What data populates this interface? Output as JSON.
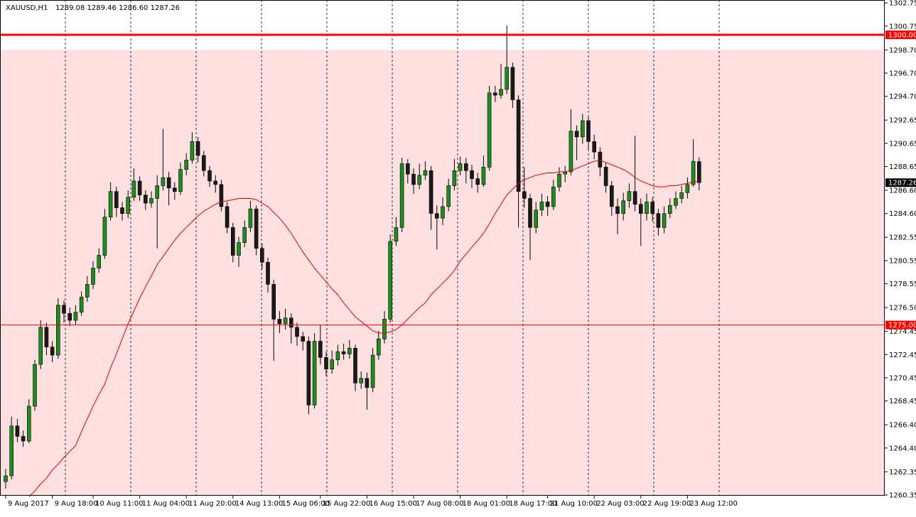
{
  "chart_data": {
    "type": "candlestick",
    "title": "XAUUSD,H1",
    "ohlc_text": "1289.08 1289.46 1286.60 1287.26",
    "ylim": [
      1260.35,
      1303.0
    ],
    "yticks": [
      1302.75,
      1300.75,
      {
        "value": 1298.7,
        "label": "1298.70"
      },
      {
        "value": 1296.7,
        "label": "1296.70"
      },
      {
        "value": 1294.7,
        "label": "1294.70"
      },
      1292.65,
      1290.65,
      1288.65,
      {
        "value": 1286.6,
        "label": "1286.60"
      },
      {
        "value": 1284.6,
        "label": "1284.60"
      },
      1282.55,
      1280.55,
      1278.55,
      {
        "value": 1276.5,
        "label": "1276.50"
      },
      1274.45,
      1272.45,
      1270.45,
      1268.45,
      {
        "value": 1266.4,
        "label": "1266.40"
      },
      {
        "value": 1264.4,
        "label": "1264.40"
      },
      1262.35,
      1260.35
    ],
    "shaded_below": 1298.7,
    "shade_color": "#ffe0e0",
    "levels": [
      {
        "value": 1300,
        "label": "1300.00",
        "width": 3
      },
      {
        "value": 1275,
        "label": "1275.00",
        "width": 1
      }
    ],
    "level_color": "#ff0000",
    "last_price": 1287.26,
    "up_color": "#1e8c1e",
    "down_color": "#1a1a1a",
    "ma_color": "#e00000",
    "categories": [
      "9 Aug 2017",
      null,
      null,
      null,
      null,
      null,
      null,
      null,
      "9 Aug 18:00",
      null,
      null,
      null,
      null,
      null,
      null,
      "10 Aug 11:00",
      null,
      null,
      null,
      null,
      null,
      null,
      null,
      "11 Aug 04:00",
      null,
      null,
      null,
      null,
      null,
      null,
      null,
      "11 Aug 20:00",
      null,
      null,
      null,
      null,
      null,
      null,
      null,
      "14 Aug 13:00",
      null,
      null,
      null,
      null,
      null,
      null,
      null,
      "15 Aug 06:00",
      null,
      null,
      null,
      null,
      null,
      null,
      "15 Aug 22:00",
      null,
      null,
      null,
      null,
      null,
      null,
      null,
      "16 Aug 15:00",
      null,
      null,
      null,
      null,
      null,
      null,
      null,
      "17 Aug 08:00",
      null,
      null,
      null,
      null,
      null,
      null,
      null,
      "18 Aug 01:00",
      null,
      null,
      null,
      null,
      null,
      null,
      null,
      "18 Aug 17:00",
      null,
      null,
      null,
      null,
      null,
      null,
      "21 Aug 10:00",
      null,
      null,
      null,
      null,
      null,
      null,
      null,
      "22 Aug 03:00",
      null,
      null,
      null,
      null,
      null,
      null,
      null,
      "22 Aug 19:00",
      null,
      null,
      null,
      null,
      null,
      null,
      null,
      "23 Aug 12:00",
      null,
      null
    ],
    "ohlc": [
      [
        1261.5,
        1262.6,
        1260.9,
        1262.0
      ],
      [
        1262.0,
        1267.1,
        1261.7,
        1266.3
      ],
      [
        1266.3,
        1266.9,
        1264.9,
        1265.4
      ],
      [
        1265.4,
        1265.9,
        1264.5,
        1265.0
      ],
      [
        1265.0,
        1268.6,
        1264.8,
        1268.0
      ],
      [
        1268.0,
        1272.0,
        1267.6,
        1271.6
      ],
      [
        1271.6,
        1275.4,
        1271.2,
        1274.8
      ],
      [
        1274.8,
        1275.2,
        1272.4,
        1273.1
      ],
      [
        1273.1,
        1273.6,
        1271.8,
        1272.4
      ],
      [
        1272.4,
        1277.3,
        1272.1,
        1276.7
      ],
      [
        1276.7,
        1277.1,
        1275.2,
        1276.0
      ],
      [
        1276.0,
        1276.5,
        1274.9,
        1275.4
      ],
      [
        1275.4,
        1276.7,
        1275.0,
        1276.1
      ],
      [
        1276.1,
        1277.9,
        1275.8,
        1277.4
      ],
      [
        1277.4,
        1279.2,
        1277.0,
        1278.5
      ],
      [
        1278.5,
        1280.5,
        1278.1,
        1279.9
      ],
      [
        1279.9,
        1281.6,
        1279.5,
        1281.0
      ],
      [
        1281.0,
        1285.0,
        1280.7,
        1284.3
      ],
      [
        1284.3,
        1287.3,
        1284.0,
        1286.5
      ],
      [
        1286.5,
        1286.9,
        1284.3,
        1285.1
      ],
      [
        1285.1,
        1285.6,
        1284.0,
        1284.6
      ],
      [
        1284.6,
        1286.6,
        1284.2,
        1286.0
      ],
      [
        1286.0,
        1288.5,
        1285.7,
        1287.4
      ],
      [
        1287.4,
        1287.8,
        1285.7,
        1286.2
      ],
      [
        1286.2,
        1286.6,
        1284.9,
        1285.5
      ],
      [
        1285.5,
        1286.5,
        1285.1,
        1285.9
      ],
      [
        1285.9,
        1287.9,
        1281.6,
        1287.0
      ],
      [
        1287.0,
        1291.9,
        1286.6,
        1287.7
      ],
      [
        1287.7,
        1288.2,
        1285.3,
        1286.8
      ],
      [
        1286.8,
        1287.3,
        1285.8,
        1286.5
      ],
      [
        1286.5,
        1289.0,
        1286.2,
        1288.4
      ],
      [
        1288.4,
        1289.8,
        1287.9,
        1289.2
      ],
      [
        1289.2,
        1291.6,
        1288.9,
        1290.8
      ],
      [
        1290.8,
        1291.2,
        1289.0,
        1289.6
      ],
      [
        1289.6,
        1290.0,
        1287.8,
        1288.3
      ],
      [
        1288.3,
        1288.7,
        1286.9,
        1287.4
      ],
      [
        1287.4,
        1287.9,
        1286.4,
        1287.1
      ],
      [
        1287.1,
        1287.5,
        1284.8,
        1285.2
      ],
      [
        1285.2,
        1285.6,
        1282.9,
        1283.4
      ],
      [
        1283.4,
        1283.8,
        1280.4,
        1281.0
      ],
      [
        1281.0,
        1282.6,
        1280.0,
        1282.1
      ],
      [
        1282.1,
        1284.0,
        1281.7,
        1283.4
      ],
      [
        1283.4,
        1285.7,
        1283.0,
        1285.0
      ],
      [
        1285.0,
        1285.3,
        1281.0,
        1281.6
      ],
      [
        1281.6,
        1282.0,
        1279.8,
        1280.4
      ],
      [
        1280.4,
        1280.8,
        1277.8,
        1278.5
      ],
      [
        1278.5,
        1278.9,
        1271.9,
        1275.5
      ],
      [
        1275.5,
        1276.2,
        1274.3,
        1275.1
      ],
      [
        1275.1,
        1276.4,
        1274.6,
        1275.6
      ],
      [
        1275.6,
        1276.0,
        1273.4,
        1274.8
      ],
      [
        1274.8,
        1275.2,
        1273.2,
        1274.0
      ],
      [
        1274.0,
        1274.4,
        1272.8,
        1273.6
      ],
      [
        1273.6,
        1274.0,
        1267.3,
        1268.1
      ],
      [
        1268.1,
        1274.3,
        1267.8,
        1273.6
      ],
      [
        1273.6,
        1275.0,
        1271.6,
        1272.2
      ],
      [
        1272.2,
        1272.7,
        1270.6,
        1271.2
      ],
      [
        1271.2,
        1272.8,
        1270.8,
        1272.0
      ],
      [
        1272.0,
        1273.3,
        1271.5,
        1272.7
      ],
      [
        1272.7,
        1273.4,
        1272.0,
        1272.5
      ],
      [
        1272.5,
        1273.7,
        1272.1,
        1273.0
      ],
      [
        1273.0,
        1273.3,
        1269.3,
        1270.0
      ],
      [
        1270.0,
        1271.0,
        1269.5,
        1270.4
      ],
      [
        1270.4,
        1270.9,
        1267.7,
        1269.6
      ],
      [
        1269.6,
        1273.0,
        1269.2,
        1272.4
      ],
      [
        1272.4,
        1274.5,
        1272.0,
        1273.8
      ],
      [
        1273.8,
        1276.2,
        1273.4,
        1275.5
      ],
      [
        1275.5,
        1282.8,
        1275.2,
        1282.2
      ],
      [
        1282.2,
        1284.3,
        1281.8,
        1283.4
      ],
      [
        1283.4,
        1289.4,
        1283.0,
        1288.9
      ],
      [
        1288.9,
        1289.3,
        1287.2,
        1288.0
      ],
      [
        1288.0,
        1288.5,
        1286.3,
        1287.1
      ],
      [
        1287.1,
        1288.9,
        1286.7,
        1287.9
      ],
      [
        1287.9,
        1289.1,
        1287.5,
        1288.3
      ],
      [
        1288.3,
        1288.7,
        1283.2,
        1284.6
      ],
      [
        1284.6,
        1285.3,
        1281.5,
        1284.2
      ],
      [
        1284.2,
        1286.0,
        1283.6,
        1285.2
      ],
      [
        1285.2,
        1287.6,
        1284.8,
        1287.0
      ],
      [
        1287.0,
        1289.3,
        1286.6,
        1288.3
      ],
      [
        1288.3,
        1289.5,
        1287.9,
        1288.9
      ],
      [
        1288.9,
        1289.4,
        1287.2,
        1288.3
      ],
      [
        1288.3,
        1288.8,
        1286.8,
        1287.6
      ],
      [
        1287.6,
        1288.1,
        1286.4,
        1287.1
      ],
      [
        1287.1,
        1289.6,
        1286.9,
        1288.6
      ],
      [
        1288.6,
        1295.6,
        1288.3,
        1295.0
      ],
      [
        1295.0,
        1295.6,
        1294.2,
        1294.8
      ],
      [
        1294.8,
        1297.5,
        1294.5,
        1295.3
      ],
      [
        1295.3,
        1300.8,
        1294.9,
        1297.2
      ],
      [
        1297.2,
        1297.6,
        1293.7,
        1294.4
      ],
      [
        1294.4,
        1294.8,
        1283.4,
        1286.5
      ],
      [
        1286.5,
        1288.6,
        1285.1,
        1285.9
      ],
      [
        1285.9,
        1286.3,
        1280.6,
        1283.4
      ],
      [
        1283.4,
        1285.6,
        1282.9,
        1284.9
      ],
      [
        1284.9,
        1286.3,
        1284.4,
        1285.6
      ],
      [
        1285.6,
        1286.1,
        1284.4,
        1285.2
      ],
      [
        1285.2,
        1287.5,
        1284.9,
        1286.9
      ],
      [
        1286.9,
        1288.6,
        1286.5,
        1288.0
      ],
      [
        1288.0,
        1288.7,
        1287.3,
        1288.2
      ],
      [
        1288.2,
        1293.6,
        1287.9,
        1291.7
      ],
      [
        1291.7,
        1292.2,
        1289.2,
        1291.2
      ],
      [
        1291.2,
        1293.2,
        1290.6,
        1292.6
      ],
      [
        1292.6,
        1292.9,
        1290.1,
        1290.8
      ],
      [
        1290.8,
        1291.4,
        1289.3,
        1289.9
      ],
      [
        1289.9,
        1290.3,
        1287.8,
        1288.6
      ],
      [
        1288.6,
        1289.0,
        1286.4,
        1287.0
      ],
      [
        1287.0,
        1287.4,
        1284.4,
        1285.2
      ],
      [
        1285.2,
        1285.9,
        1282.8,
        1284.6
      ],
      [
        1284.6,
        1286.4,
        1284.0,
        1285.7
      ],
      [
        1285.7,
        1287.2,
        1285.1,
        1286.5
      ],
      [
        1286.5,
        1291.3,
        1284.8,
        1285.4
      ],
      [
        1285.4,
        1285.9,
        1281.8,
        1284.6
      ],
      [
        1284.6,
        1286.3,
        1284.0,
        1285.6
      ],
      [
        1285.6,
        1286.0,
        1283.9,
        1284.6
      ],
      [
        1284.6,
        1285.0,
        1282.7,
        1283.4
      ],
      [
        1283.4,
        1285.2,
        1282.9,
        1284.6
      ],
      [
        1284.6,
        1285.9,
        1284.2,
        1285.3
      ],
      [
        1285.3,
        1286.5,
        1285.0,
        1285.9
      ],
      [
        1285.9,
        1287.0,
        1285.5,
        1286.4
      ],
      [
        1286.4,
        1287.7,
        1285.9,
        1287.1
      ],
      [
        1287.1,
        1291.0,
        1286.9,
        1289.1
      ],
      [
        1289.08,
        1289.46,
        1286.6,
        1287.26
      ]
    ],
    "ma": [
      null,
      null,
      null,
      null,
      1260.2,
      1260.7,
      1261.3,
      1261.8,
      1262.5,
      1263.0,
      1263.6,
      1264.1,
      1264.6,
      1265.8,
      1266.9,
      1268.0,
      1269.0,
      1269.9,
      1271.3,
      1272.5,
      1273.8,
      1275.1,
      1276.2,
      1277.3,
      1278.3,
      1279.2,
      1280.2,
      1280.9,
      1281.6,
      1282.3,
      1282.9,
      1283.4,
      1283.9,
      1284.4,
      1284.8,
      1285.1,
      1285.4,
      1285.6,
      1285.7,
      1285.8,
      1285.9,
      1285.9,
      1285.9,
      1285.8,
      1285.5,
      1285.2,
      1284.7,
      1284.2,
      1283.6,
      1282.9,
      1282.1,
      1281.3,
      1280.6,
      1279.9,
      1279.3,
      1278.7,
      1278.1,
      1277.6,
      1276.9,
      1276.3,
      1275.7,
      1275.3,
      1274.9,
      1274.5,
      1274.3,
      1274.3,
      1274.4,
      1274.6,
      1275.0,
      1275.5,
      1276.0,
      1276.5,
      1276.9,
      1277.6,
      1278.1,
      1278.6,
      1279.1,
      1279.7,
      1280.5,
      1281.1,
      1281.7,
      1282.3,
      1282.9,
      1283.7,
      1284.6,
      1285.4,
      1286.2,
      1286.7,
      1287.2,
      1287.5,
      1287.7,
      1287.9,
      1288.0,
      1288.1,
      1288.1,
      1288.2,
      1288.2,
      1288.3,
      1288.5,
      1288.7,
      1288.9,
      1289.1,
      1289.2,
      1289.0,
      1288.8,
      1288.6,
      1288.4,
      1288.1,
      1287.7,
      1287.4,
      1287.2,
      1287.0,
      1286.9,
      1286.9,
      1287.0,
      1287.0,
      1287.1,
      1287.2,
      1287.3,
      1287.4
    ]
  }
}
